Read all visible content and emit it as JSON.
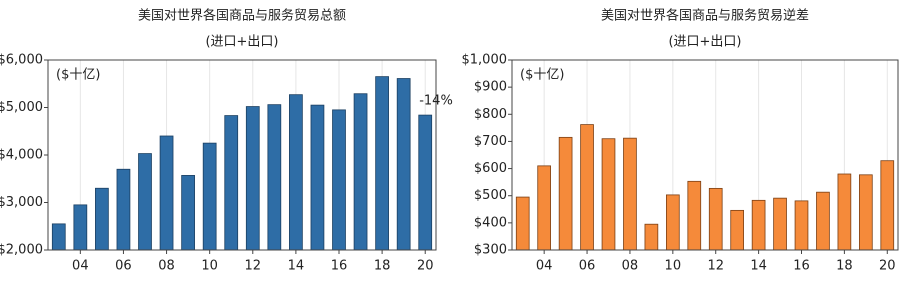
{
  "chart_data": [
    {
      "type": "bar",
      "title": "美国对世界各国商品与服务贸易总额",
      "subtitle": "(进口+出口)",
      "unit_label": "($十亿)",
      "annotation": "-14%",
      "categories": [
        null,
        "04",
        null,
        "06",
        null,
        "08",
        null,
        "10",
        null,
        "12",
        null,
        "14",
        null,
        "16",
        null,
        "18",
        null,
        "20"
      ],
      "values": [
        2550,
        2950,
        3300,
        3700,
        4030,
        4400,
        3570,
        4250,
        4830,
        5020,
        5060,
        5270,
        5050,
        4950,
        5290,
        5650,
        5610,
        4840
      ],
      "color": "#2e6da6",
      "edge_color": "#1b3f61",
      "ylim": [
        2000,
        6000
      ],
      "yticks": [
        {
          "value": 2000,
          "label": "$2,000"
        },
        {
          "value": 3000,
          "label": "$3,000"
        },
        {
          "value": 4000,
          "label": "$4,000"
        },
        {
          "value": 5000,
          "label": "$5,000"
        },
        {
          "value": 6000,
          "label": "$6,000"
        }
      ],
      "grid": "x"
    },
    {
      "type": "bar",
      "title": "美国对世界各国商品与服务贸易逆差",
      "subtitle": "(进口+出口)",
      "unit_label": "($十亿)",
      "categories": [
        null,
        "04",
        null,
        "06",
        null,
        "08",
        null,
        "10",
        null,
        "12",
        null,
        "14",
        null,
        "16",
        null,
        "18",
        null,
        "20"
      ],
      "values": [
        495,
        610,
        715,
        762,
        710,
        712,
        395,
        503,
        553,
        527,
        446,
        483,
        491,
        481,
        513,
        580,
        577,
        629
      ],
      "color": "#f58a3a",
      "edge_color": "#7a3f14",
      "ylim": [
        300,
        1000
      ],
      "yticks": [
        {
          "value": 300,
          "label": "$300"
        },
        {
          "value": 400,
          "label": "$400"
        },
        {
          "value": 500,
          "label": "$500"
        },
        {
          "value": 600,
          "label": "$600"
        },
        {
          "value": 700,
          "label": "$700"
        },
        {
          "value": 800,
          "label": "$800"
        },
        {
          "value": 900,
          "label": "$900"
        },
        {
          "value": 1000,
          "label": "$1,000"
        }
      ],
      "grid": "x"
    }
  ]
}
